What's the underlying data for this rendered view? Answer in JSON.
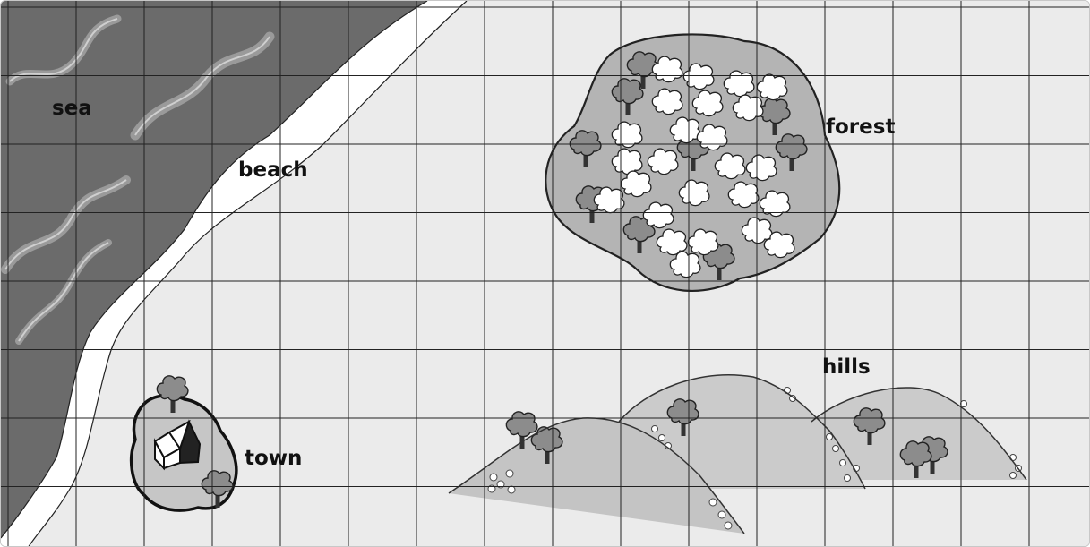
{
  "map": {
    "grid": {
      "columns": 16,
      "rows": 8
    },
    "regions": [
      {
        "key": "sea",
        "label": "sea"
      },
      {
        "key": "beach",
        "label": "beach"
      },
      {
        "key": "forest",
        "label": "forest"
      },
      {
        "key": "hills",
        "label": "hills"
      },
      {
        "key": "town",
        "label": "town"
      }
    ],
    "colors": {
      "background": "#ebebeb",
      "grid": "#222222",
      "sea": "#6b6b6b",
      "sea_wave": "#8f8f8f",
      "beach": "#ffffff",
      "forest": "#b4b4b4",
      "hills": "#c9c9c9",
      "tree": "#8c8c8c",
      "town": "#c6c6c6"
    }
  }
}
